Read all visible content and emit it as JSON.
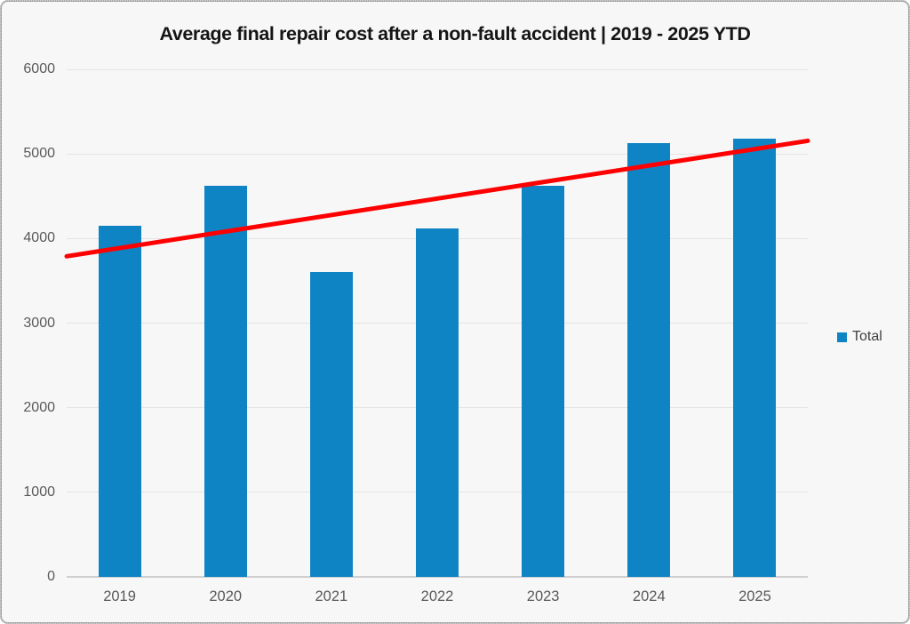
{
  "title": "Average final repair cost after a non-fault accident | 2019 - 2025 YTD",
  "legend": {
    "label": "Total"
  },
  "colors": {
    "background": "#f7f7f7",
    "bar": "#0f84c4",
    "trendline": "#fe0000",
    "gridline": "#e4e4e4",
    "axis_line": "#cfcfcf",
    "tick_text": "#595959",
    "title_text": "#151515",
    "border": "#a6a6a6"
  },
  "chart_data": {
    "type": "bar",
    "title": "Average final repair cost after a non-fault accident | 2019 - 2025 YTD",
    "categories": [
      "2019",
      "2020",
      "2021",
      "2022",
      "2023",
      "2024",
      "2025"
    ],
    "series": [
      {
        "name": "Total",
        "color": "#0f84c4",
        "values": [
          4150,
          4620,
          3600,
          4120,
          4620,
          5130,
          5180
        ]
      }
    ],
    "trendline": {
      "for_series": "Total",
      "type": "linear",
      "color": "#fe0000",
      "start_value": 3790,
      "end_value": 5155
    },
    "xlabel": "",
    "ylabel": "",
    "ylim": [
      0,
      6000
    ],
    "yticks": [
      0,
      1000,
      2000,
      3000,
      4000,
      5000,
      6000
    ],
    "grid": true,
    "legend_position": "right"
  }
}
